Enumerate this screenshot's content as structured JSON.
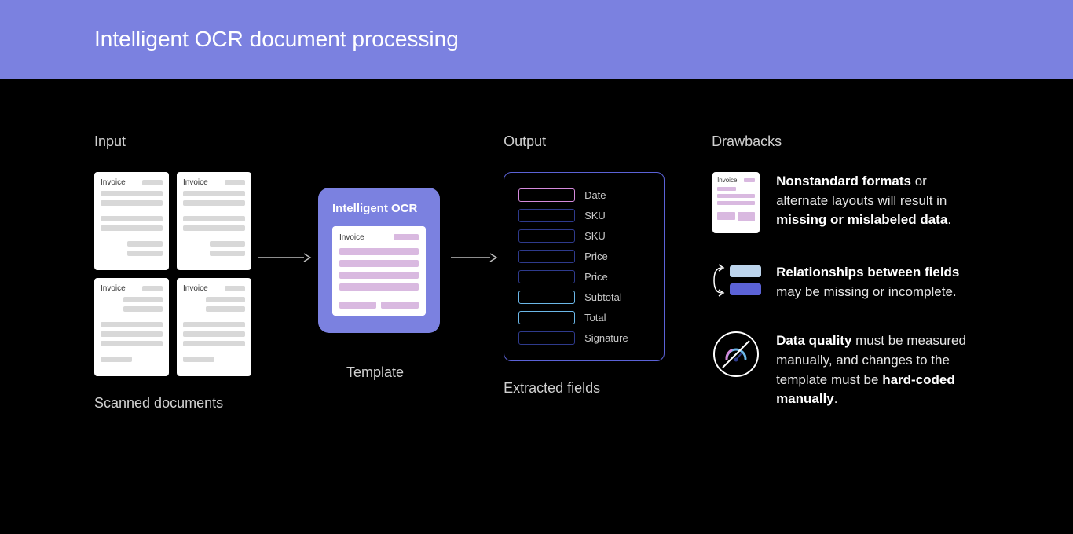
{
  "header": {
    "title": "Intelligent OCR document processing"
  },
  "colors": {
    "header_bg": "#7b81e0",
    "page_bg": "#000000",
    "doc_bg": "#ffffff",
    "doc_line": "#d8d8d8",
    "template_bg": "#7b81e0",
    "template_line": "#d9b9e0",
    "output_border": "#5b62d6",
    "field_pink": "#d58adc",
    "field_navy": "#2e3a8c",
    "field_blue": "#6bb7e8",
    "rel_light": "#bcd4ec",
    "rel_dark": "#5b62d6"
  },
  "input": {
    "label": "Input",
    "caption": "Scanned documents",
    "doc_label": "Invoice"
  },
  "template": {
    "title": "Intelligent OCR",
    "doc_label": "Invoice",
    "caption": "Template"
  },
  "output": {
    "label": "Output",
    "caption": "Extracted fields",
    "fields": [
      {
        "label": "Date",
        "color": "#d58adc"
      },
      {
        "label": "SKU",
        "color": "#2e3a8c"
      },
      {
        "label": "SKU",
        "color": "#2e3a8c"
      },
      {
        "label": "Price",
        "color": "#2e3a8c"
      },
      {
        "label": "Price",
        "color": "#2e3a8c"
      },
      {
        "label": "Subtotal",
        "color": "#6bb7e8"
      },
      {
        "label": "Total",
        "color": "#6bb7e8"
      },
      {
        "label": "Signature",
        "color": "#2e3a8c"
      }
    ]
  },
  "drawbacks": {
    "label": "Drawbacks",
    "mini_doc_label": "Invoice",
    "items": [
      {
        "html": "<b>Nonstandard formats</b> or alternate layouts will result in <b>missing or mislabeled data</b>."
      },
      {
        "html": "<b>Relationships between fields</b> may be missing or incomplete."
      },
      {
        "html": "<b>Data quality</b> must be measured manually, and changes to the template must be <b>hard-coded manually</b>."
      }
    ]
  }
}
